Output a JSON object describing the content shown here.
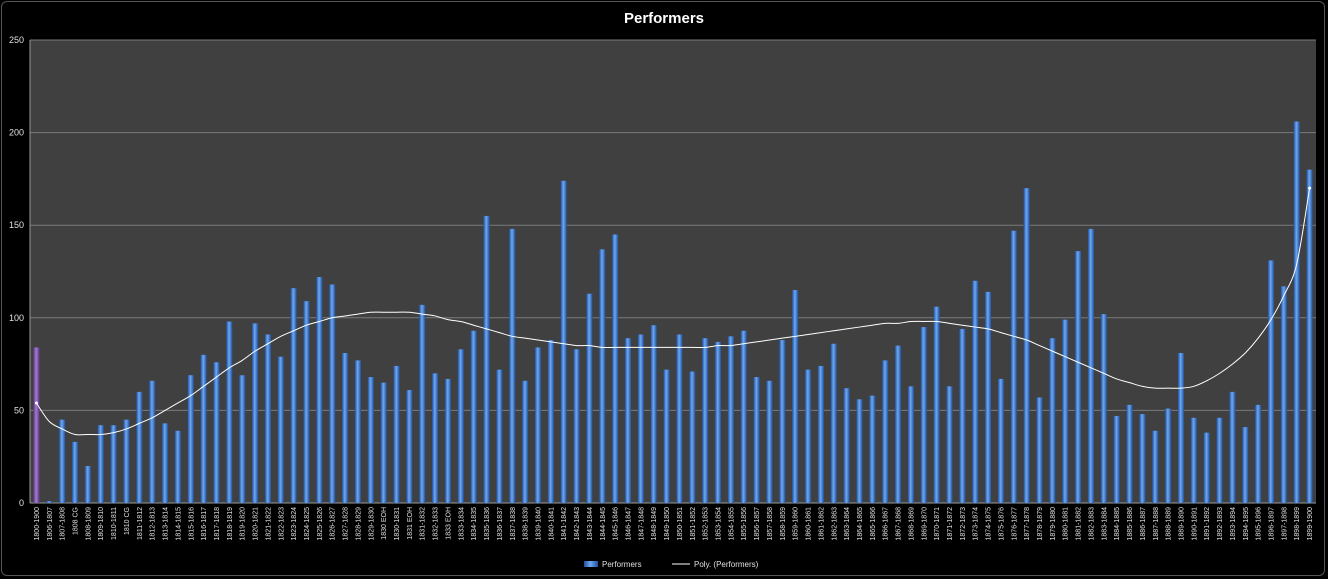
{
  "chart_data": {
    "type": "bar",
    "title": "Performers",
    "xlabel": "",
    "ylabel": "",
    "ylim": [
      0,
      250
    ],
    "yticks": [
      0,
      50,
      100,
      150,
      200,
      250
    ],
    "grid": true,
    "legend_position": "bottom",
    "categories": [
      "1800-1900",
      "1806-1807",
      "1807-1808",
      "1808 CG",
      "1808-1809",
      "1809-1810",
      "1810-1811",
      "1810 CG",
      "1811-1812",
      "1812-1813",
      "1813-1814",
      "1814-1815",
      "1815-1816",
      "1816-1817",
      "1817-1818",
      "1818-1819",
      "1819-1820",
      "1820-1821",
      "1821-1822",
      "1822-1823",
      "1823-1824",
      "1824-1825",
      "1825-1826",
      "1826-1827",
      "1827-1828",
      "1828-1829",
      "1829-1830",
      "1830 EOH",
      "1830-1831",
      "1831 EOH",
      "1831-1832",
      "1832-1833",
      "1833 EOH",
      "1833-1834",
      "1834-1835",
      "1835-1836",
      "1836-1837",
      "1837-1838",
      "1838-1839",
      "1839-1840",
      "1840-1841",
      "1841-1842",
      "1842-1843",
      "1843-1844",
      "1844-1845",
      "1845-1846",
      "1846-1847",
      "1847-1848",
      "1848-1849",
      "1849-1850",
      "1850-1851",
      "1851-1852",
      "1852-1853",
      "1853-1854",
      "1854-1855",
      "1855-1856",
      "1856-1857",
      "1857-1858",
      "1858-1859",
      "1859-1860",
      "1860-1861",
      "1861-1862",
      "1862-1863",
      "1863-1864",
      "1864-1865",
      "1865-1866",
      "1866-1867",
      "1867-1868",
      "1868-1869",
      "1869-1870",
      "1870-1871",
      "1871-1872",
      "1872-1873",
      "1873-1874",
      "1874-1875",
      "1875-1876",
      "1876-1877",
      "1877-1878",
      "1878-1879",
      "1879-1880",
      "1880-1881",
      "1881-1882",
      "1882-1883",
      "1883-1884",
      "1884-1885",
      "1885-1886",
      "1886-1887",
      "1887-1888",
      "1888-1889",
      "1889-1890",
      "1890-1891",
      "1891-1892",
      "1892-1893",
      "1893-1894",
      "1894-1895",
      "1895-1896",
      "1896-1897",
      "1897-1898",
      "1898-1899",
      "1899-1900"
    ],
    "series": [
      {
        "name": "Performers",
        "color": "#3f7fd6",
        "highlight_color": "#7a4fa8",
        "values": [
          84,
          1,
          45,
          33,
          20,
          42,
          42,
          45,
          60,
          66,
          43,
          39,
          69,
          80,
          76,
          98,
          69,
          97,
          91,
          79,
          116,
          109,
          122,
          118,
          81,
          77,
          68,
          65,
          74,
          61,
          107,
          70,
          67,
          83,
          93,
          155,
          72,
          148,
          66,
          84,
          88,
          174,
          83,
          113,
          137,
          145,
          89,
          91,
          96,
          72,
          91,
          71,
          89,
          87,
          90,
          93,
          68,
          66,
          88,
          115,
          72,
          74,
          86,
          62,
          56,
          58,
          77,
          85,
          63,
          95,
          106,
          63,
          94,
          120,
          114,
          67,
          147,
          170,
          57,
          89,
          99,
          136,
          148,
          102,
          47,
          53,
          48,
          39,
          51,
          81,
          46,
          38,
          46,
          60,
          41,
          53,
          131,
          117,
          206,
          180
        ]
      },
      {
        "name": "Poly. (Performers)",
        "color": "#ffffff",
        "type": "trendline",
        "values": [
          54,
          44,
          40,
          37,
          37,
          37,
          38,
          40,
          43,
          46,
          50,
          54,
          58,
          63,
          68,
          73,
          77,
          82,
          86,
          90,
          93,
          96,
          98,
          100,
          101,
          102,
          103,
          103,
          103,
          103,
          102,
          101,
          99,
          98,
          96,
          94,
          92,
          90,
          89,
          88,
          87,
          86,
          85,
          85,
          84,
          84,
          84,
          84,
          84,
          84,
          84,
          84,
          84,
          85,
          85,
          86,
          87,
          88,
          89,
          90,
          91,
          92,
          93,
          94,
          95,
          96,
          97,
          97,
          98,
          98,
          98,
          97,
          96,
          95,
          94,
          92,
          90,
          88,
          85,
          82,
          79,
          76,
          73,
          70,
          67,
          65,
          63,
          62,
          62,
          62,
          63,
          66,
          70,
          75,
          81,
          89,
          99,
          112,
          129,
          170
        ]
      }
    ]
  }
}
